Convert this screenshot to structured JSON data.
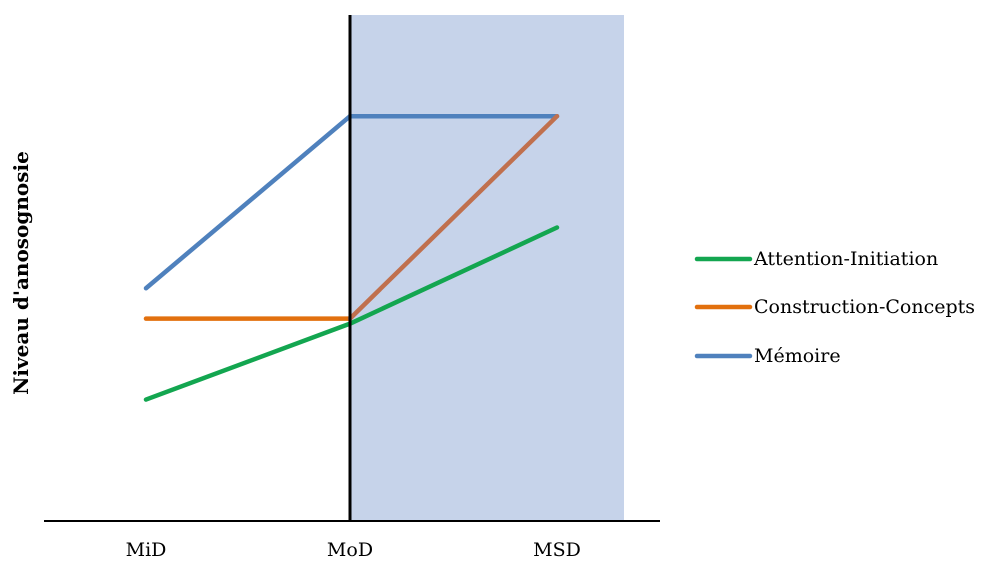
{
  "chart_data": {
    "type": "line",
    "title": "",
    "xlabel": "",
    "ylabel": "Niveau d'anosognosie",
    "categories": [
      "MiD",
      "MoD",
      "MSD"
    ],
    "ylim": [
      0,
      10
    ],
    "grid": false,
    "y_ticks_shown": false,
    "legend_position": "right",
    "shaded_region": {
      "from": "MoD",
      "to": "MSD",
      "color": "#c6d3ea"
    },
    "vertical_marker": {
      "at": "MoD",
      "color": "#000000"
    },
    "series": [
      {
        "name": "Attention-Initiation",
        "values": [
          2.4,
          3.9,
          5.8
        ],
        "color": "#13a650"
      },
      {
        "name": "Construction-Concepts",
        "values": [
          4.0,
          4.0,
          8.0
        ],
        "color": "#e2700e",
        "segment_colors": [
          "#e2700e",
          "#c0704e"
        ]
      },
      {
        "name": "Mémoire",
        "values": [
          4.6,
          8.0,
          8.0
        ],
        "color": "#4f81bd"
      }
    ]
  }
}
